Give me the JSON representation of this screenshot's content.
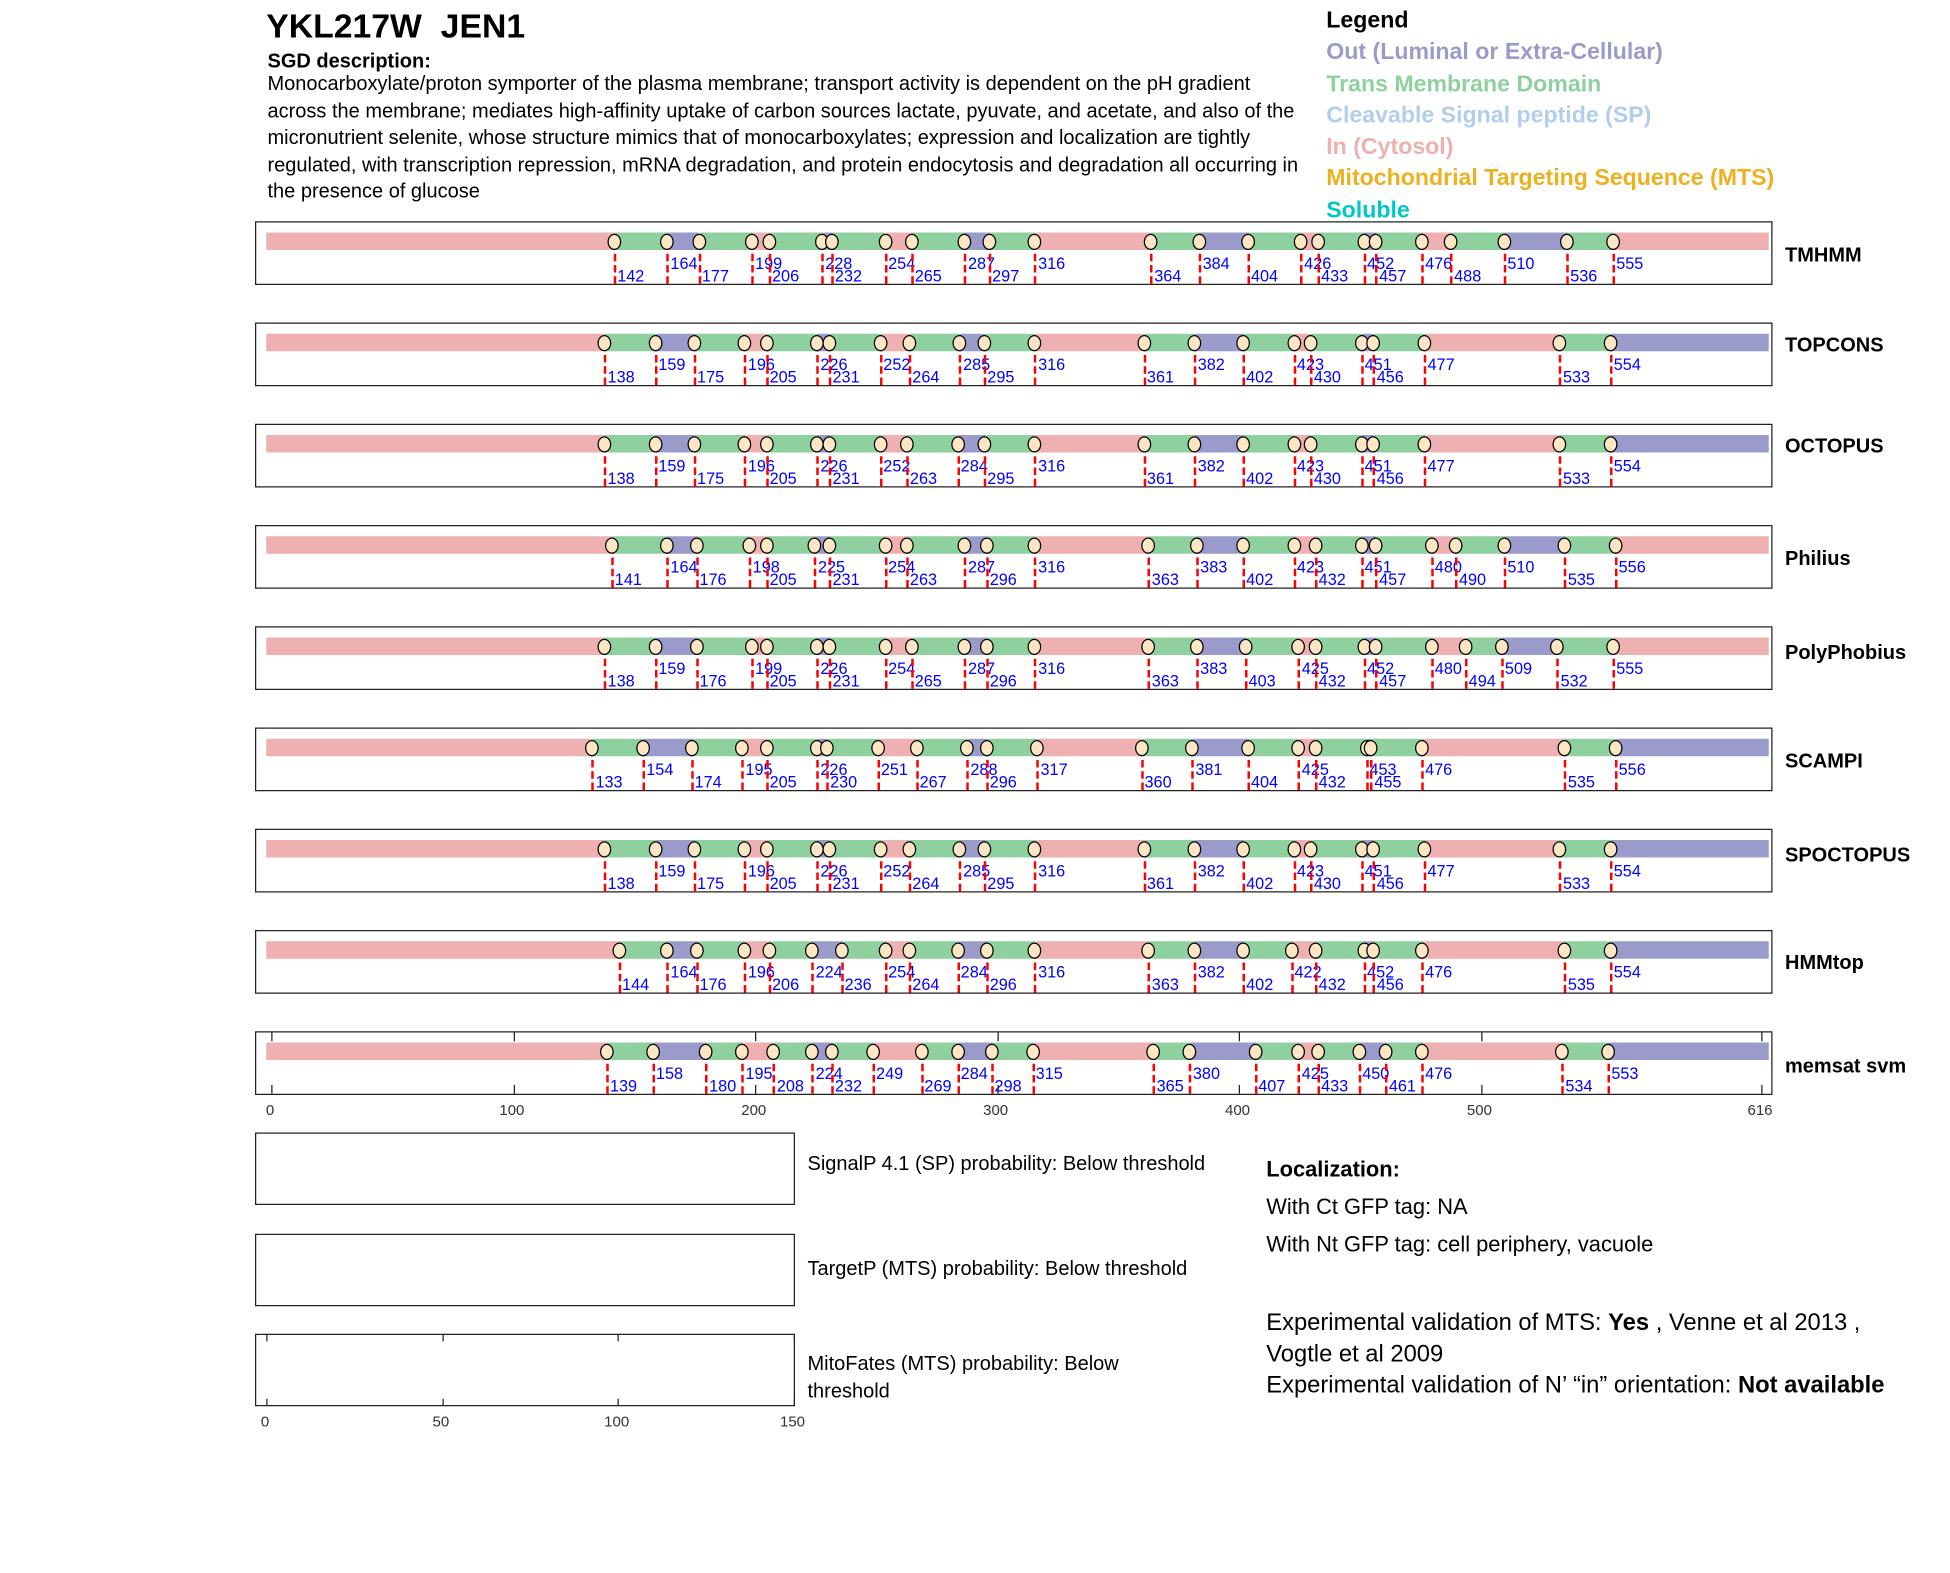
{
  "header": {
    "title": "YKL217W  JEN1",
    "sgd_heading": "SGD description:",
    "sgd_text": "Monocarboxylate/proton symporter of the plasma membrane; transport activity is dependent on the pH gradient across the membrane; mediates high-affinity uptake of carbon sources lactate, pyuvate, and acetate, and also of the micronutrient selenite, whose structure mimics that of monocarboxylates; expression and localization are tightly regulated, with transcription repression, mRNA degradation, and protein endocytosis and degradation all occurring in the presence of glucose"
  },
  "legend": {
    "title": "Legend",
    "items": [
      {
        "label": "Out (Luminal or Extra-Cellular)",
        "color": "#9b9bcb"
      },
      {
        "label": "Trans Membrane Domain",
        "color": "#8fd19e"
      },
      {
        "label": "Cleavable Signal peptide (SP)",
        "color": "#b3cdee"
      },
      {
        "label": "In (Cytosol)",
        "color": "#eeb0b0"
      },
      {
        "label": "Mitochondrial Targeting Sequence (MTS)",
        "color": "#edb120"
      },
      {
        "label": "Soluble",
        "color": "#00c8c8"
      }
    ]
  },
  "colors": {
    "in": "#eeb0b0",
    "tm": "#8fd19e",
    "out": "#9b9bcb",
    "boundary_label": "#0000ff",
    "boundary_line": "#ff0000"
  },
  "chart_data": {
    "type": "topology",
    "length": 616,
    "axis_ticks": [
      0,
      100,
      200,
      300,
      400,
      500,
      616
    ],
    "segment_order": "starts In (Cytosol), alternates TM / Out / TM / In",
    "tracks": [
      {
        "name": "TMHMM",
        "boundaries": [
          142,
          164,
          177,
          199,
          206,
          228,
          232,
          254,
          265,
          287,
          297,
          316,
          364,
          384,
          404,
          426,
          433,
          452,
          457,
          476,
          488,
          510,
          536,
          555
        ]
      },
      {
        "name": "TOPCONS",
        "boundaries": [
          138,
          159,
          175,
          196,
          205,
          226,
          231,
          252,
          264,
          285,
          295,
          316,
          361,
          382,
          402,
          423,
          430,
          451,
          456,
          477,
          533,
          554
        ]
      },
      {
        "name": "OCTOPUS",
        "boundaries": [
          138,
          159,
          175,
          196,
          205,
          226,
          231,
          252,
          263,
          284,
          295,
          316,
          361,
          382,
          402,
          423,
          430,
          451,
          456,
          477,
          533,
          554
        ]
      },
      {
        "name": "Philius",
        "boundaries": [
          141,
          164,
          176,
          198,
          205,
          225,
          231,
          254,
          263,
          287,
          296,
          316,
          363,
          383,
          402,
          423,
          432,
          451,
          457,
          480,
          490,
          510,
          535,
          556
        ]
      },
      {
        "name": "PolyPhobius",
        "boundaries": [
          138,
          159,
          176,
          199,
          205,
          226,
          231,
          254,
          265,
          287,
          296,
          316,
          363,
          383,
          403,
          425,
          432,
          452,
          457,
          480,
          494,
          509,
          532,
          555
        ]
      },
      {
        "name": "SCAMPI",
        "boundaries": [
          133,
          154,
          174,
          195,
          205,
          226,
          230,
          251,
          267,
          288,
          296,
          317,
          360,
          381,
          404,
          425,
          432,
          453,
          455,
          476,
          535,
          556
        ]
      },
      {
        "name": "SPOCTOPUS",
        "boundaries": [
          138,
          159,
          175,
          196,
          205,
          226,
          231,
          252,
          264,
          285,
          295,
          316,
          361,
          382,
          402,
          423,
          430,
          451,
          456,
          477,
          533,
          554
        ]
      },
      {
        "name": "HMMtop",
        "boundaries": [
          144,
          164,
          176,
          196,
          206,
          224,
          236,
          254,
          264,
          284,
          296,
          316,
          363,
          382,
          402,
          422,
          432,
          452,
          456,
          476,
          535,
          554
        ]
      },
      {
        "name": "memsat svm",
        "boundaries": [
          139,
          158,
          180,
          195,
          208,
          224,
          232,
          249,
          269,
          284,
          298,
          315,
          365,
          380,
          407,
          425,
          433,
          450,
          461,
          476,
          534,
          553
        ]
      }
    ]
  },
  "predictions": {
    "axis_ticks": [
      0,
      50,
      100,
      150
    ],
    "signalp": "SignalP 4.1 (SP) probability: Below threshold",
    "targetp": "TargetP (MTS) probability: Below threshold",
    "mitofates": "MitoFates (MTS) probability: Below threshold"
  },
  "localization": {
    "heading": "Localization:",
    "ct": "With Ct GFP tag: NA",
    "nt": "With Nt GFP tag: cell periphery, vacuole"
  },
  "validation": {
    "mts_prefix": "Experimental validation of MTS: ",
    "mts_value": "Yes",
    "mts_refs": " , Venne et al 2013 , Vogtle et al 2009",
    "orient_prefix": "Experimental validation of N’ “in” orientation: ",
    "orient_value": "Not available"
  }
}
